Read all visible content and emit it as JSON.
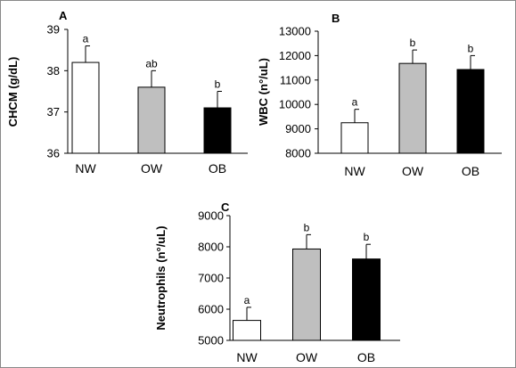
{
  "figure": {
    "border_color": "#888888",
    "background": "#ffffff"
  },
  "colors": {
    "NW": "#ffffff",
    "OW": "#bfbfbf",
    "OB": "#000000",
    "bar_stroke": "#000000"
  },
  "chart_data": [
    {
      "panel": "A",
      "type": "bar",
      "categories": [
        "NW",
        "OW",
        "OB"
      ],
      "values": [
        38.2,
        37.6,
        37.1
      ],
      "errors": [
        0.4,
        0.4,
        0.4
      ],
      "significance": [
        "a",
        "ab",
        "b"
      ],
      "ylabel": "CHCM (g/dL)",
      "ylim": [
        36,
        39
      ],
      "yticks": [
        "36",
        "37",
        "38",
        "39"
      ],
      "grid": false,
      "legend": "none"
    },
    {
      "panel": "B",
      "type": "bar",
      "categories": [
        "NW",
        "OW",
        "OB"
      ],
      "values": [
        9250,
        11680,
        11430
      ],
      "errors": [
        550,
        550,
        570
      ],
      "significance": [
        "a",
        "b",
        "b"
      ],
      "ylabel": "WBC (n°/uL)",
      "ylim": [
        8000,
        13000
      ],
      "yticks": [
        "8000",
        "9000",
        "10000",
        "11000",
        "12000",
        "13000"
      ],
      "grid": false,
      "legend": "none"
    },
    {
      "panel": "C",
      "type": "bar",
      "categories": [
        "NW",
        "OW",
        "OB"
      ],
      "values": [
        5640,
        7930,
        7610
      ],
      "errors": [
        420,
        460,
        470
      ],
      "significance": [
        "a",
        "b",
        "b"
      ],
      "ylabel": "Neutrophils (n°/uL)",
      "ylim": [
        5000,
        9000
      ],
      "yticks": [
        "5000",
        "6000",
        "7000",
        "8000",
        "9000"
      ],
      "grid": false,
      "legend": "none"
    }
  ]
}
